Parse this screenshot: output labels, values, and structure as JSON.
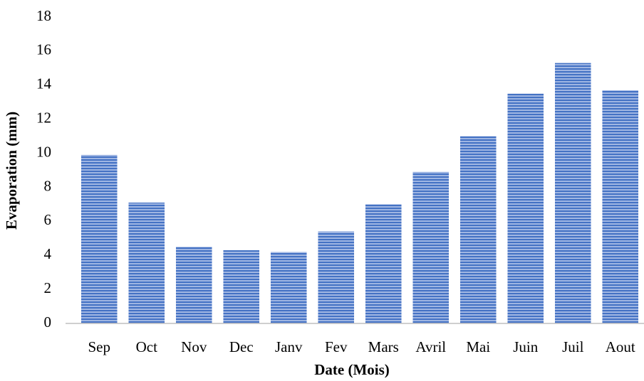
{
  "chart_data": {
    "type": "bar",
    "x_label": "Date  (Mois)",
    "y_label": "Evaporation  (mm)",
    "categories": [
      "Sep",
      "Oct",
      "Nov",
      "Dec",
      "Janv",
      "Fev",
      "Mars",
      "Avril",
      "Mai",
      "Juin",
      "Juil",
      "Aout"
    ],
    "values": [
      9.9,
      7.1,
      4.5,
      4.3,
      4.2,
      5.4,
      7.0,
      8.9,
      11.0,
      13.5,
      15.3,
      13.7
    ],
    "color": "#4472c4",
    "ylim": [
      0,
      18
    ],
    "yticks": [
      0,
      2,
      4,
      6,
      8,
      10,
      12,
      14,
      16,
      18
    ],
    "grid": false
  }
}
